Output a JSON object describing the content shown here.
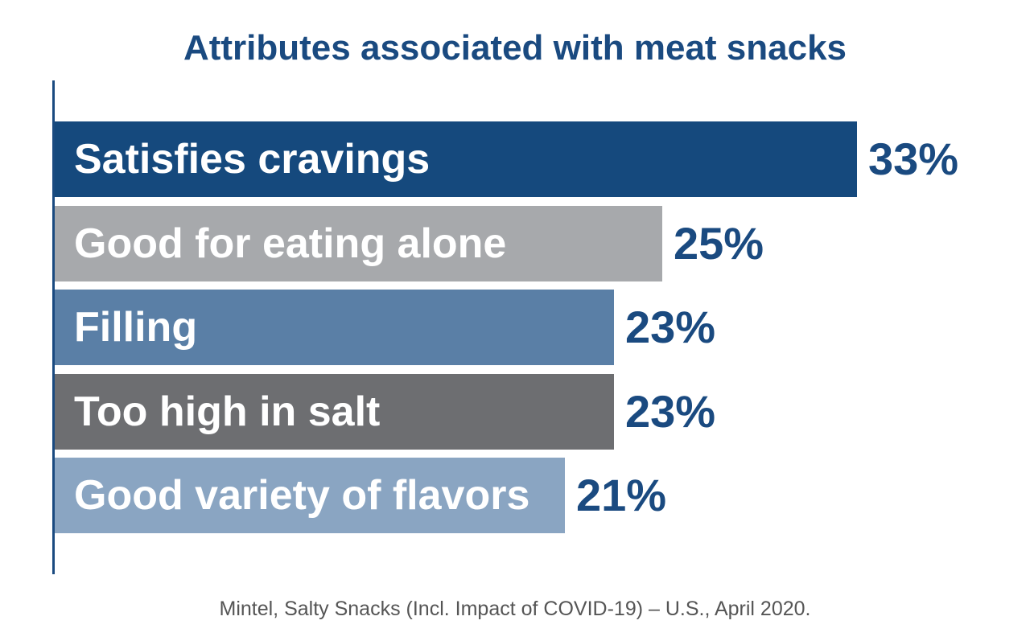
{
  "chart_data": {
    "type": "bar",
    "orientation": "horizontal",
    "title": "Attributes associated with meat snacks",
    "categories": [
      "Satisfies cravings",
      "Good for eating alone",
      "Filling",
      "Too high in salt",
      "Good variety of flavors"
    ],
    "values": [
      33,
      25,
      23,
      23,
      21
    ],
    "value_labels": [
      "33%",
      "25%",
      "23%",
      "23%",
      "21%"
    ],
    "colors": [
      "#15497d",
      "#a7a9ac",
      "#5a7fa6",
      "#6d6e71",
      "#8aa5c2"
    ],
    "xlabel": "",
    "ylabel": "",
    "xlim": [
      0,
      33
    ],
    "grid": false,
    "legend": "none"
  },
  "source": "Mintel, Salty Snacks (Incl. Impact of COVID-19) – U.S., April 2020."
}
